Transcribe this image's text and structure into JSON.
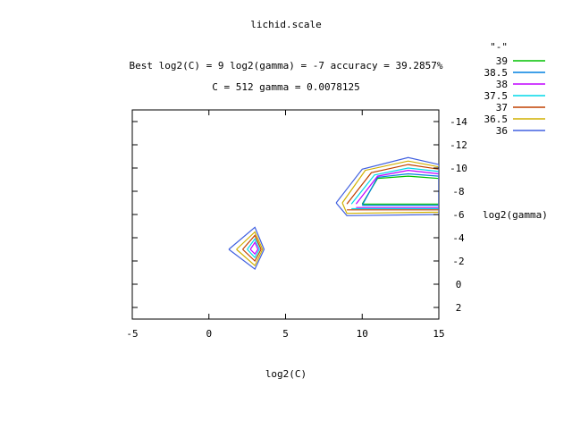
{
  "chart_data": {
    "type": "contour",
    "title": "lichid.scale",
    "subtitle_line1": "Best log2(C) = 9  log2(gamma) = -7  accuracy = 39.2857%",
    "subtitle_line2": "C = 512  gamma = 0.0078125",
    "xlabel": "log2(C)",
    "ylabel": "log2(gamma)",
    "xlim": [
      -5,
      15
    ],
    "ylim": [
      3,
      -15
    ],
    "x_ticks": [
      "-5",
      "0",
      "5",
      "10",
      "15"
    ],
    "y_ticks": [
      "-14",
      "-12",
      "-10",
      "-8",
      "-6",
      "-4",
      "-2",
      "0",
      "2"
    ],
    "legend_title": "\"-\"",
    "legend_position": "top-right, outside plot",
    "series": [
      {
        "name": "39",
        "color": "#00c000",
        "paths": [
          [
            [
              10,
              -6.9
            ],
            [
              11,
              -9.1
            ],
            [
              12,
              -9.2
            ],
            [
              13,
              -9.3
            ],
            [
              14,
              -9.2
            ],
            [
              15,
              -9.1
            ],
            [
              15,
              -6.9
            ],
            [
              10,
              -6.9
            ]
          ]
        ]
      },
      {
        "name": "38.5",
        "color": "#0080e0",
        "paths": [
          [
            [
              10,
              -6.8
            ],
            [
              11,
              -9.2
            ],
            [
              13,
              -9.5
            ],
            [
              15,
              -9.3
            ],
            [
              15,
              -6.8
            ],
            [
              10,
              -6.8
            ]
          ]
        ]
      },
      {
        "name": "38",
        "color": "#c000ff",
        "paths": [
          [
            [
              9.6,
              -6.9
            ],
            [
              11,
              -9.3
            ],
            [
              13,
              -9.8
            ],
            [
              15,
              -9.5
            ],
            [
              15,
              -6.6
            ],
            [
              9.6,
              -6.6
            ]
          ],
          [
            [
              2.7,
              -3.0
            ],
            [
              3.0,
              -3.6
            ],
            [
              3.2,
              -3.0
            ],
            [
              3.0,
              -2.6
            ],
            [
              2.7,
              -3.0
            ]
          ]
        ]
      },
      {
        "name": "37.5",
        "color": "#00d8e8",
        "paths": [
          [
            [
              9.3,
              -6.9
            ],
            [
              10.8,
              -9.4
            ],
            [
              13,
              -10.0
            ],
            [
              15,
              -9.7
            ],
            [
              15,
              -6.5
            ],
            [
              9.3,
              -6.5
            ]
          ],
          [
            [
              2.5,
              -3.0
            ],
            [
              3.0,
              -3.9
            ],
            [
              3.3,
              -3.0
            ],
            [
              3.0,
              -2.3
            ],
            [
              2.5,
              -3.0
            ]
          ]
        ]
      },
      {
        "name": "37",
        "color": "#c04000",
        "paths": [
          [
            [
              9.0,
              -6.9
            ],
            [
              10.6,
              -9.6
            ],
            [
              13,
              -10.3
            ],
            [
              15,
              -9.9
            ],
            [
              15,
              -6.4
            ],
            [
              9.0,
              -6.4
            ]
          ],
          [
            [
              2.2,
              -3.0
            ],
            [
              3.0,
              -4.2
            ],
            [
              3.4,
              -3.0
            ],
            [
              3.0,
              -2.0
            ],
            [
              2.2,
              -3.0
            ]
          ]
        ]
      },
      {
        "name": "36.5",
        "color": "#d0b000",
        "paths": [
          [
            [
              8.7,
              -7.0
            ],
            [
              10.2,
              -9.8
            ],
            [
              13,
              -10.6
            ],
            [
              15,
              -10.1
            ],
            [
              15,
              -6.2
            ],
            [
              9.0,
              -6.1
            ],
            [
              8.7,
              -7.0
            ]
          ],
          [
            [
              1.8,
              -3.0
            ],
            [
              3.0,
              -4.5
            ],
            [
              3.5,
              -3.0
            ],
            [
              3.0,
              -1.6
            ],
            [
              1.8,
              -3.0
            ]
          ]
        ]
      },
      {
        "name": "36",
        "color": "#4060e0",
        "paths": [
          [
            [
              8.3,
              -7.0
            ],
            [
              10.0,
              -9.9
            ],
            [
              13,
              -10.9
            ],
            [
              15,
              -10.3
            ],
            [
              15,
              -6.0
            ],
            [
              9.0,
              -5.9
            ],
            [
              8.3,
              -7.0
            ]
          ],
          [
            [
              1.3,
              -3.0
            ],
            [
              3.0,
              -4.9
            ],
            [
              3.6,
              -3.0
            ],
            [
              3.0,
              -1.3
            ],
            [
              1.3,
              -3.0
            ]
          ]
        ]
      }
    ]
  }
}
